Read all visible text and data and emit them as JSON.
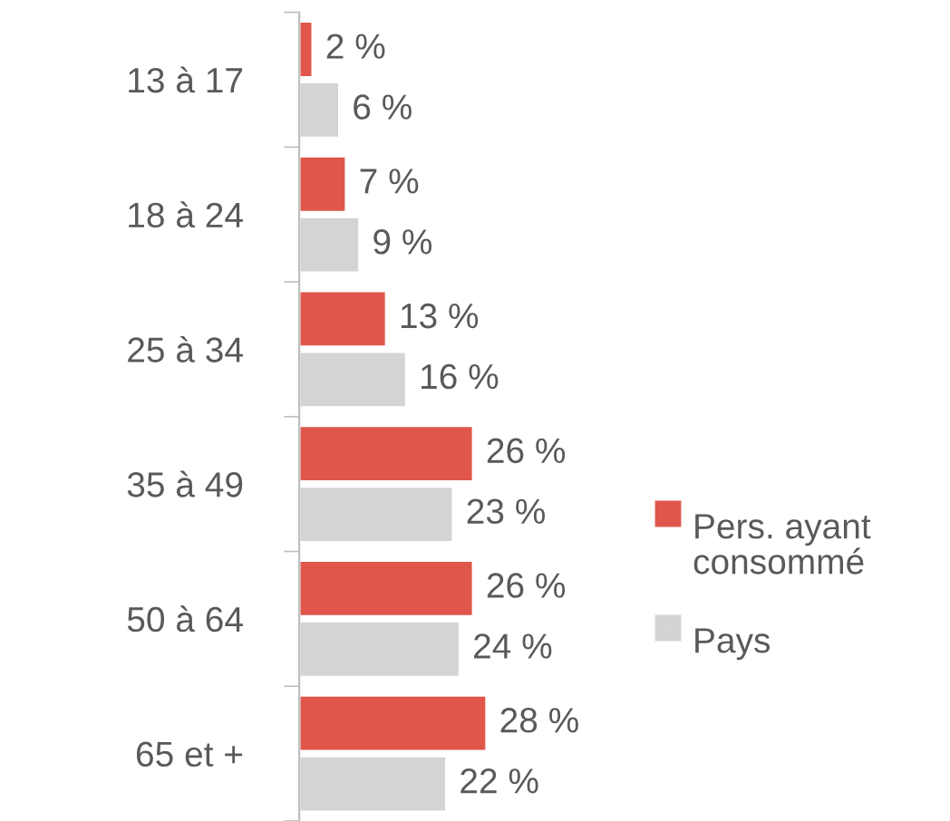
{
  "chart_data": {
    "type": "bar",
    "orientation": "horizontal",
    "legend": "right",
    "categories": [
      "13 à 17",
      "18 à 24",
      "25 à 34",
      "35 à 49",
      "50 à 64",
      "65 et +"
    ],
    "series": [
      {
        "name": "Pers. ayant consommé",
        "color": "#e0564a",
        "values": [
          2,
          7,
          13,
          26,
          26,
          28
        ],
        "value_labels": [
          "2 %",
          "7 %",
          "13 %",
          "26 %",
          "26 %",
          "28 %"
        ]
      },
      {
        "name": "Pays",
        "color": "#d4d4d4",
        "values": [
          6,
          9,
          16,
          23,
          24,
          22
        ],
        "value_labels": [
          "6 %",
          "9 %",
          "16 %",
          "23 %",
          "24 %",
          "22 %"
        ]
      }
    ]
  }
}
